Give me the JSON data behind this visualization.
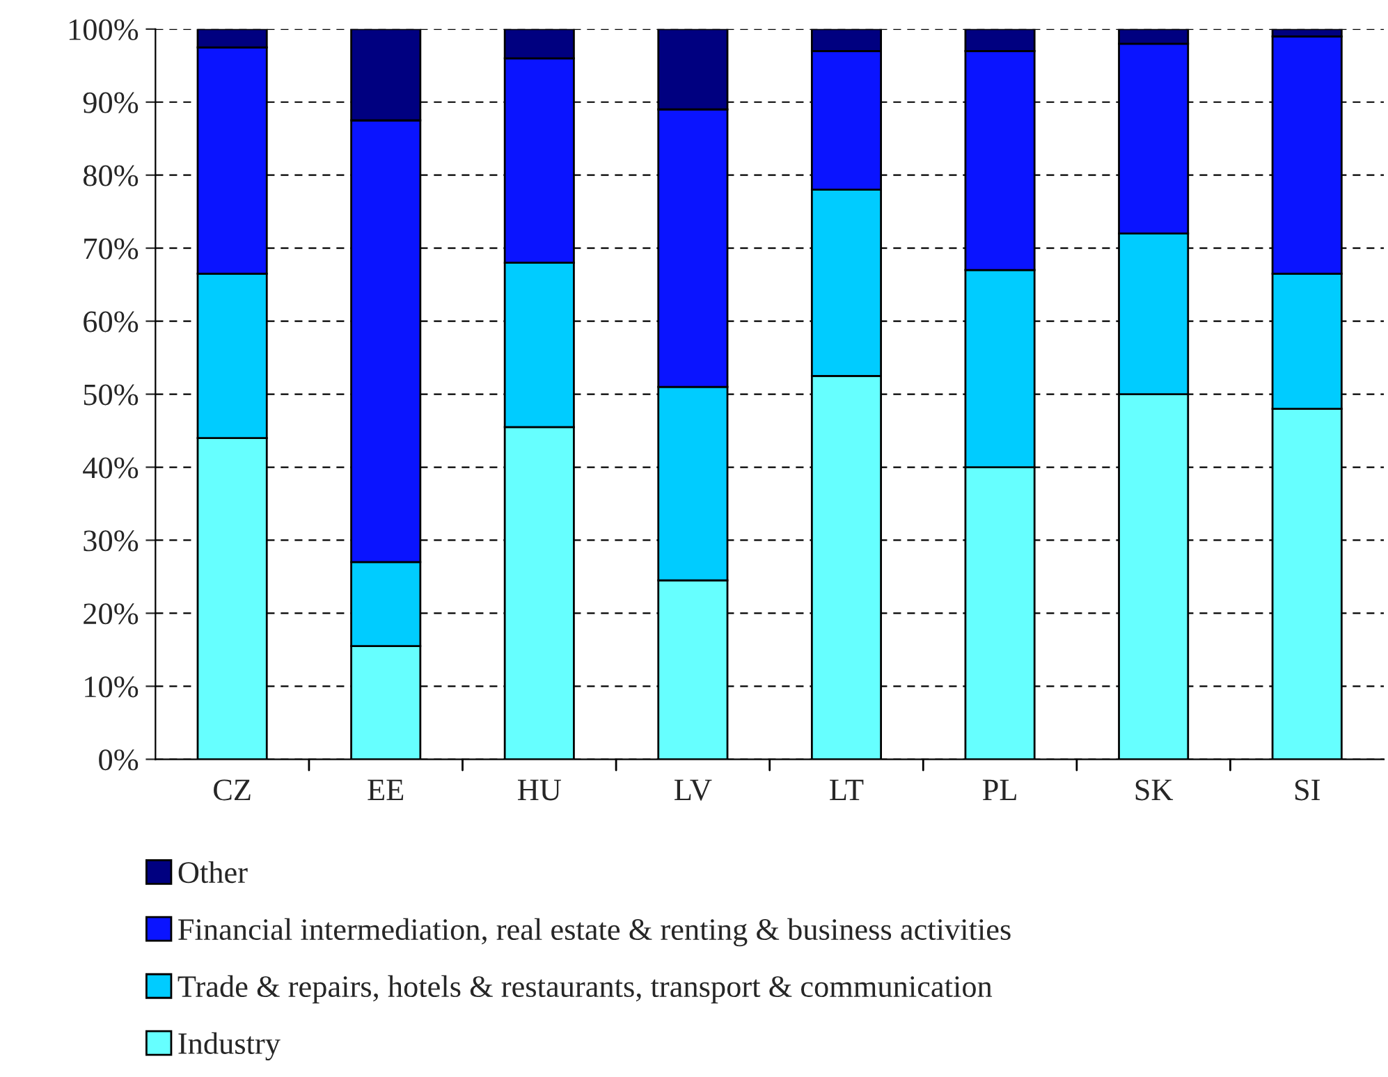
{
  "chart_data": {
    "type": "bar",
    "stacked": true,
    "categories": [
      "CZ",
      "EE",
      "HU",
      "LV",
      "LT",
      "PL",
      "SK",
      "SI"
    ],
    "series": [
      {
        "name": "Industry",
        "color": "#66ffff",
        "values": [
          44,
          15.5,
          45.5,
          24.5,
          52.5,
          40,
          50,
          48
        ]
      },
      {
        "name": "Trade & repairs, hotels & restaurants, transport & communication",
        "color": "#00ccff",
        "values": [
          22.5,
          11.5,
          22.5,
          26.5,
          25.5,
          27,
          22,
          18.5
        ]
      },
      {
        "name": "Financial intermediation, real estate & renting & business activities",
        "color": "#0a14ff",
        "values": [
          31,
          60.5,
          28,
          38,
          19,
          30,
          26,
          32.5
        ]
      },
      {
        "name": "Other",
        "color": "#000080",
        "values": [
          2.5,
          12.5,
          4,
          11,
          3,
          3,
          2,
          1
        ]
      }
    ],
    "ylim": [
      0,
      100
    ],
    "yticks": [
      {
        "value": 0,
        "label": "0%"
      },
      {
        "value": 10,
        "label": "10%"
      },
      {
        "value": 20,
        "label": "20%"
      },
      {
        "value": 30,
        "label": "30%"
      },
      {
        "value": 40,
        "label": "40%"
      },
      {
        "value": 50,
        "label": "50%"
      },
      {
        "value": 60,
        "label": "60%"
      },
      {
        "value": 70,
        "label": "70%"
      },
      {
        "value": 80,
        "label": "80%"
      },
      {
        "value": 90,
        "label": "90%"
      },
      {
        "value": 100,
        "label": "100%"
      }
    ],
    "grid": "y",
    "legend": "bottom"
  }
}
